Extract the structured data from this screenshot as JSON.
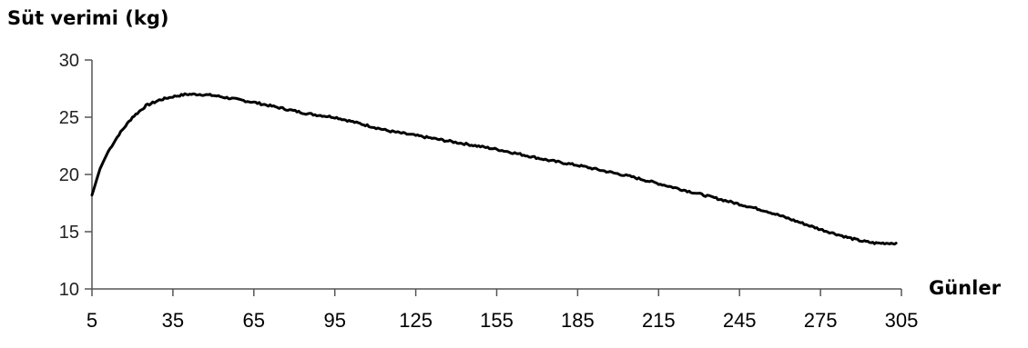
{
  "chart_data": {
    "type": "line",
    "title": "",
    "ylabel": "Süt verimi (kg)",
    "xlabel": "Günler",
    "xlim": [
      5,
      305
    ],
    "ylim": [
      10,
      30
    ],
    "x_ticks": [
      "5",
      "35",
      "65",
      "95",
      "125",
      "155",
      "185",
      "215",
      "245",
      "275",
      "305"
    ],
    "y_ticks": [
      "10",
      "15",
      "20",
      "25",
      "30"
    ],
    "grid": false,
    "legend": "none",
    "line_color": "#000000",
    "series": [
      {
        "x": [
          5,
          8,
          11,
          15,
          20,
          25,
          30,
          35,
          40,
          45,
          50,
          55,
          60,
          65,
          75,
          85,
          95,
          105,
          115,
          125,
          135,
          145,
          155,
          165,
          175,
          185,
          195,
          205,
          215,
          225,
          235,
          245,
          255,
          265,
          275,
          285,
          290,
          295,
          300,
          303
        ],
        "values": [
          18.2,
          20.5,
          22.0,
          23.5,
          25.0,
          26.0,
          26.5,
          26.8,
          27.0,
          27.0,
          26.9,
          26.7,
          26.5,
          26.3,
          25.8,
          25.3,
          25.0,
          24.4,
          23.8,
          23.4,
          23.0,
          22.6,
          22.2,
          21.7,
          21.2,
          20.8,
          20.3,
          19.8,
          19.2,
          18.6,
          18.0,
          17.4,
          16.8,
          16.0,
          15.2,
          14.5,
          14.2,
          14.0,
          14.0,
          14.0
        ]
      }
    ]
  }
}
